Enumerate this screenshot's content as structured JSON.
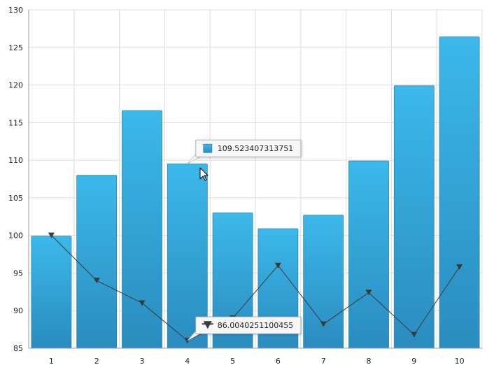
{
  "chart_data": {
    "type": "bar",
    "categories": [
      "1",
      "2",
      "3",
      "4",
      "5",
      "6",
      "7",
      "8",
      "9",
      "10"
    ],
    "series": [
      {
        "type": "bar",
        "values": [
          99.9,
          108.0,
          116.6,
          109.523407313751,
          103.0,
          100.9,
          102.7,
          109.9,
          119.9,
          126.4
        ]
      },
      {
        "type": "line",
        "marker": "triangle-down",
        "values": [
          100.0,
          94.0,
          91.0,
          86.0040251100455,
          89.0,
          96.0,
          88.2,
          92.4,
          86.8,
          95.8
        ]
      }
    ],
    "ylim": [
      85,
      130
    ],
    "yticks": [
      85,
      90,
      95,
      100,
      105,
      110,
      115,
      120,
      125,
      130
    ],
    "grid": true,
    "colors": {
      "bar": "#34a9dc",
      "bar_dark": "#2b8cbd",
      "line": "#3a3a3a",
      "grid": "#dcdcdc"
    },
    "tooltips": [
      {
        "category_index": 3,
        "series_index": 0,
        "text": "109.523407313751"
      },
      {
        "category_index": 3,
        "series_index": 1,
        "text": "86.0040251100455"
      }
    ],
    "cursor": "arrow-pointer"
  }
}
